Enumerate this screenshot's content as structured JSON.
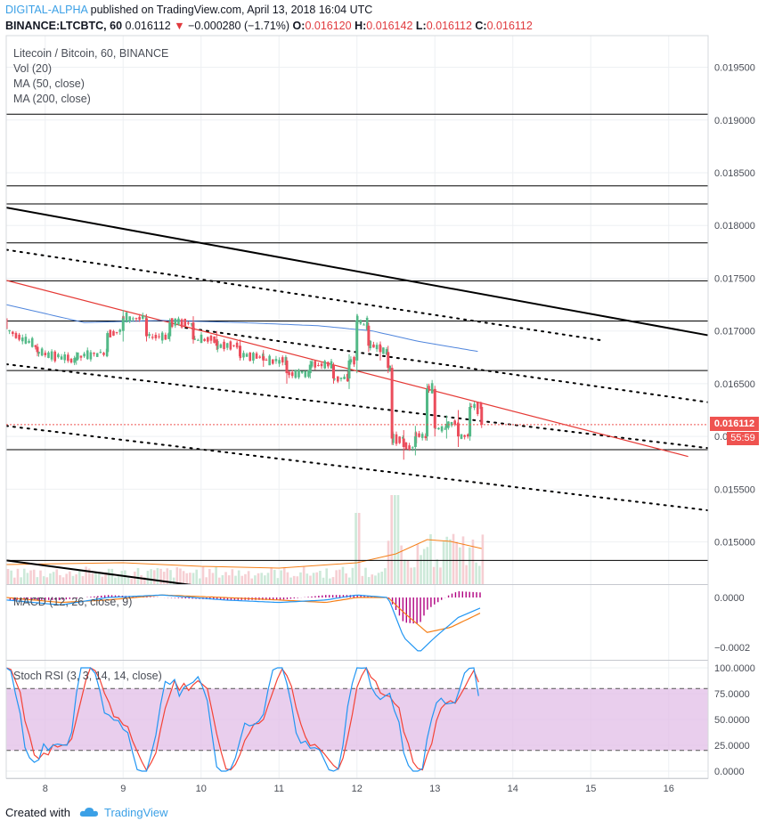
{
  "header": {
    "publisher": "DIGITAL-ALPHA",
    "published_text": "published on TradingView.com, April 13, 2018 16:04 UTC",
    "symbol_line": "BINANCE:LTCBTC, 60",
    "last": "0.016112",
    "change_arrow": "▼",
    "change": "−0.000280 (−1.71%)",
    "o_label": "O:",
    "o_value": "0.016120",
    "h_label": "H:",
    "h_value": "0.016142",
    "l_label": "L:",
    "l_value": "0.016112",
    "c_label": "C:",
    "c_value": "0.016112"
  },
  "main_legend": {
    "title": "Litecoin / Bitcoin, 60, BINANCE",
    "vol": "Vol (20)",
    "ma50": "MA (50, close)",
    "ma200": "MA (200, close)"
  },
  "macd_label": "MACD (12, 26, close, 9)",
  "stoch_label": "Stoch RSI (3, 3, 14, 14, close)",
  "price_badge": "0.016112",
  "countdown_badge": "55:59",
  "footer": {
    "created_with": "Created with",
    "brand": "TradingView"
  },
  "colors": {
    "up": "#53b987",
    "down": "#eb4d5c",
    "ma50": "#f57f17",
    "ma200": "#3c78d8",
    "stoch_band": "#e1bee7"
  },
  "chart_data": [
    {
      "type": "candlestick",
      "title": "Litecoin / Bitcoin, 60, BINANCE",
      "x_ticks": [
        "8",
        "9",
        "10",
        "11",
        "12",
        "13",
        "14",
        "15",
        "16"
      ],
      "y_ticks": [
        "0.019500",
        "0.019000",
        "0.018500",
        "0.018000",
        "0.017500",
        "0.017000",
        "0.016500",
        "0.016000",
        "0.015500",
        "0.015000"
      ],
      "ylim": [
        0.0146,
        0.0198
      ],
      "last_price": 0.016112,
      "horizontal_levels": [
        0.019055,
        0.018375,
        0.018205,
        0.017835,
        0.017475,
        0.017095,
        0.016625,
        0.015875,
        0.014825
      ],
      "trendlines": [
        {
          "style": "solid-black",
          "from": [
            7.5,
            0.01817
          ],
          "to": [
            16.5,
            0.01696
          ]
        },
        {
          "style": "dotted",
          "from": [
            7.5,
            0.01777
          ],
          "to": [
            15.15,
            0.01691
          ]
        },
        {
          "style": "dotted",
          "from": [
            7.5,
            0.016685
          ],
          "to": [
            16.5,
            0.01589
          ]
        },
        {
          "style": "dotted",
          "from": [
            9.8,
            0.01703
          ],
          "to": [
            16.5,
            0.016325
          ]
        },
        {
          "style": "dotted",
          "from": [
            7.5,
            0.0161
          ],
          "to": [
            16.5,
            0.0153
          ]
        },
        {
          "style": "solid-red",
          "from": [
            7.5,
            0.01748
          ],
          "to": [
            16.25,
            0.01581
          ]
        },
        {
          "style": "solid-black",
          "from": [
            7.5,
            0.014825
          ],
          "to": [
            10.3,
            0.01455
          ]
        }
      ],
      "candles_approx": [
        [
          7.5,
          0.01712,
          0.01713,
          0.017,
          0.01702
        ],
        [
          7.9,
          0.01685,
          0.01688,
          0.01676,
          0.0168
        ],
        [
          8.4,
          0.01672,
          0.0168,
          0.01668,
          0.01675
        ],
        [
          8.8,
          0.0168,
          0.017,
          0.01677,
          0.01698
        ],
        [
          9.0,
          0.017,
          0.0172,
          0.0169,
          0.01712
        ],
        [
          9.3,
          0.01712,
          0.01716,
          0.0169,
          0.01695
        ],
        [
          9.6,
          0.01695,
          0.01712,
          0.0169,
          0.01708
        ],
        [
          9.9,
          0.01708,
          0.01714,
          0.01688,
          0.01692
        ],
        [
          10.2,
          0.01692,
          0.017,
          0.01682,
          0.01686
        ],
        [
          10.5,
          0.01686,
          0.01692,
          0.01672,
          0.01676
        ],
        [
          10.8,
          0.01676,
          0.01682,
          0.01666,
          0.01672
        ],
        [
          11.1,
          0.01672,
          0.01675,
          0.0165,
          0.0166
        ],
        [
          11.4,
          0.0166,
          0.01672,
          0.01655,
          0.01668
        ],
        [
          11.7,
          0.01668,
          0.0167,
          0.0165,
          0.01655
        ],
        [
          11.9,
          0.01655,
          0.01678,
          0.01645,
          0.01672
        ],
        [
          12.0,
          0.01672,
          0.01716,
          0.0166,
          0.0171
        ],
        [
          12.15,
          0.01705,
          0.01708,
          0.0168,
          0.01686
        ],
        [
          12.3,
          0.01686,
          0.0169,
          0.01672,
          0.0168
        ],
        [
          12.4,
          0.0168,
          0.01686,
          0.0166,
          0.01665
        ],
        [
          12.45,
          0.01665,
          0.01668,
          0.01592,
          0.01598
        ],
        [
          12.6,
          0.01598,
          0.01606,
          0.01578,
          0.0159
        ],
        [
          12.75,
          0.0159,
          0.0161,
          0.01582,
          0.016
        ],
        [
          12.9,
          0.016,
          0.0165,
          0.01596,
          0.01645
        ],
        [
          13.0,
          0.01645,
          0.01648,
          0.016,
          0.01608
        ],
        [
          13.15,
          0.01608,
          0.0162,
          0.01598,
          0.01612
        ],
        [
          13.3,
          0.01612,
          0.01625,
          0.0159,
          0.016
        ],
        [
          13.45,
          0.016,
          0.01632,
          0.01596,
          0.01628
        ],
        [
          13.6,
          0.01628,
          0.01632,
          0.01608,
          0.01611
        ]
      ],
      "ma50_approx": [
        [
          7.5,
          0.01692
        ],
        [
          8.5,
          0.01684
        ],
        [
          9.5,
          0.017
        ],
        [
          10.5,
          0.01688
        ],
        [
          11.5,
          0.0167
        ],
        [
          12.0,
          0.01675
        ],
        [
          12.5,
          0.0166
        ],
        [
          13.0,
          0.01625
        ],
        [
          13.6,
          0.0162
        ]
      ],
      "ma200_approx": [
        [
          7.5,
          0.01725
        ],
        [
          8.5,
          0.01708
        ],
        [
          9.5,
          0.0171
        ],
        [
          10.5,
          0.01708
        ],
        [
          11.5,
          0.01705
        ],
        [
          12.2,
          0.017
        ],
        [
          12.8,
          0.0169
        ],
        [
          13.6,
          0.0168
        ]
      ]
    },
    {
      "type": "bar",
      "title": "Vol (20)",
      "note": "volume histogram at bottom of main pane"
    },
    {
      "type": "line",
      "title": "MACD (12, 26, close, 9)",
      "y_ticks": [
        "0.0000",
        "−0.0002"
      ],
      "ylim": [
        -0.00025,
        5e-05
      ]
    },
    {
      "type": "line",
      "title": "Stoch RSI (3, 3, 14, 14, close)",
      "y_ticks": [
        "100.0000",
        "75.0000",
        "50.0000",
        "25.0000",
        "0.0000"
      ],
      "ylim": [
        0,
        100
      ],
      "band": [
        20,
        80
      ]
    }
  ]
}
